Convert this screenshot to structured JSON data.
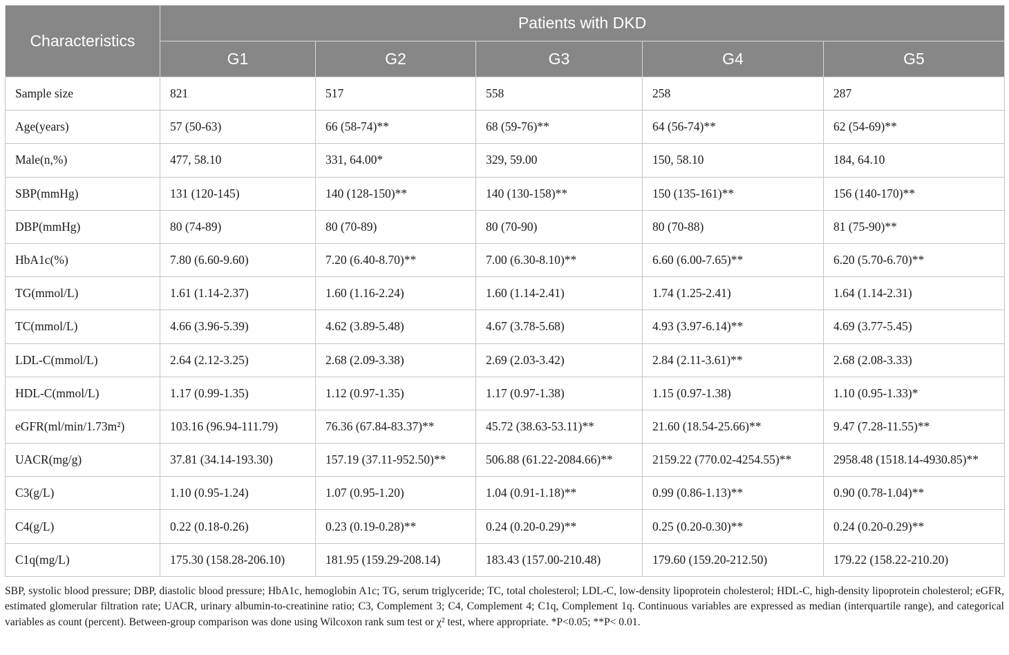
{
  "table": {
    "stub_header": "Characteristics",
    "group_header": "Patients with DKD",
    "columns": [
      "G1",
      "G2",
      "G3",
      "G4",
      "G5"
    ],
    "rows": [
      {
        "label": "Sample size",
        "values": [
          "821",
          "517",
          "558",
          "258",
          "287"
        ]
      },
      {
        "label": "Age(years)",
        "values": [
          "57 (50-63)",
          "66 (58-74)**",
          "68 (59-76)**",
          "64 (56-74)**",
          "62 (54-69)**"
        ]
      },
      {
        "label": "Male(n,%)",
        "values": [
          "477, 58.10",
          "331, 64.00*",
          "329, 59.00",
          "150, 58.10",
          "184, 64.10"
        ]
      },
      {
        "label": "SBP(mmHg)",
        "values": [
          "131 (120-145)",
          "140 (128-150)**",
          "140 (130-158)**",
          "150 (135-161)**",
          "156 (140-170)**"
        ]
      },
      {
        "label": "DBP(mmHg)",
        "values": [
          "80 (74-89)",
          "80 (70-89)",
          "80 (70-90)",
          "80 (70-88)",
          "81 (75-90)**"
        ]
      },
      {
        "label": "HbA1c(%)",
        "values": [
          "7.80 (6.60-9.60)",
          "7.20 (6.40-8.70)**",
          "7.00 (6.30-8.10)**",
          "6.60 (6.00-7.65)**",
          "6.20 (5.70-6.70)**"
        ]
      },
      {
        "label": "TG(mmol/L)",
        "values": [
          "1.61 (1.14-2.37)",
          "1.60 (1.16-2.24)",
          "1.60 (1.14-2.41)",
          "1.74 (1.25-2.41)",
          "1.64 (1.14-2.31)"
        ]
      },
      {
        "label": "TC(mmol/L)",
        "values": [
          "4.66 (3.96-5.39)",
          "4.62 (3.89-5.48)",
          "4.67 (3.78-5.68)",
          "4.93 (3.97-6.14)**",
          "4.69 (3.77-5.45)"
        ]
      },
      {
        "label": "LDL-C(mmol/L)",
        "values": [
          "2.64 (2.12-3.25)",
          "2.68 (2.09-3.38)",
          "2.69 (2.03-3.42)",
          "2.84 (2.11-3.61)**",
          "2.68 (2.08-3.33)"
        ]
      },
      {
        "label": "HDL-C(mmol/L)",
        "values": [
          "1.17 (0.99-1.35)",
          "1.12 (0.97-1.35)",
          "1.17 (0.97-1.38)",
          "1.15 (0.97-1.38)",
          "1.10 (0.95-1.33)*"
        ]
      },
      {
        "label": "eGFR(ml/min/1.73m²)",
        "values": [
          "103.16 (96.94-111.79)",
          "76.36 (67.84-83.37)**",
          "45.72 (38.63-53.11)**",
          "21.60 (18.54-25.66)**",
          "9.47 (7.28-11.55)**"
        ]
      },
      {
        "label": "UACR(mg/g)",
        "values": [
          "37.81 (34.14-193.30)",
          "157.19 (37.11-952.50)**",
          "506.88 (61.22-2084.66)**",
          "2159.22 (770.02-4254.55)**",
          "2958.48 (1518.14-4930.85)**"
        ]
      },
      {
        "label": "C3(g/L)",
        "values": [
          "1.10 (0.95-1.24)",
          "1.07 (0.95-1.20)",
          "1.04 (0.91-1.18)**",
          "0.99 (0.86-1.13)**",
          "0.90 (0.78-1.04)**"
        ]
      },
      {
        "label": "C4(g/L)",
        "values": [
          "0.22 (0.18-0.26)",
          "0.23 (0.19-0.28)**",
          "0.24 (0.20-0.29)**",
          "0.25 (0.20-0.30)**",
          "0.24 (0.20-0.29)**"
        ]
      },
      {
        "label": "C1q(mg/L)",
        "values": [
          "175.30 (158.28-206.10)",
          "181.95 (159.29-208.14)",
          "183.43 (157.00-210.48)",
          "179.60 (159.20-212.50)",
          "179.22 (158.22-210.20)"
        ]
      }
    ]
  },
  "footnote": "SBP, systolic blood pressure; DBP, diastolic blood pressure; HbA1c, hemoglobin A1c; TG, serum triglyceride; TC, total cholesterol; LDL-C, low-density lipoprotein cholesterol; HDL-C, high-density lipoprotein cholesterol; eGFR, estimated glomerular filtration rate; UACR, urinary albumin-to-creatinine ratio; C3, Complement 3; C4, Complement 4; C1q, Complement 1q. Continuous variables are expressed as median (interquartile range), and categorical variables as count (percent). Between-group comparison was done using Wilcoxon rank sum test or χ² test, where appropriate. *P<0.05; **P< 0.01.",
  "colors": {
    "header_background": "#878787",
    "header_text": "#ffffff",
    "body_text": "#1a1a1a",
    "grid_line": "#c4c4c4"
  }
}
